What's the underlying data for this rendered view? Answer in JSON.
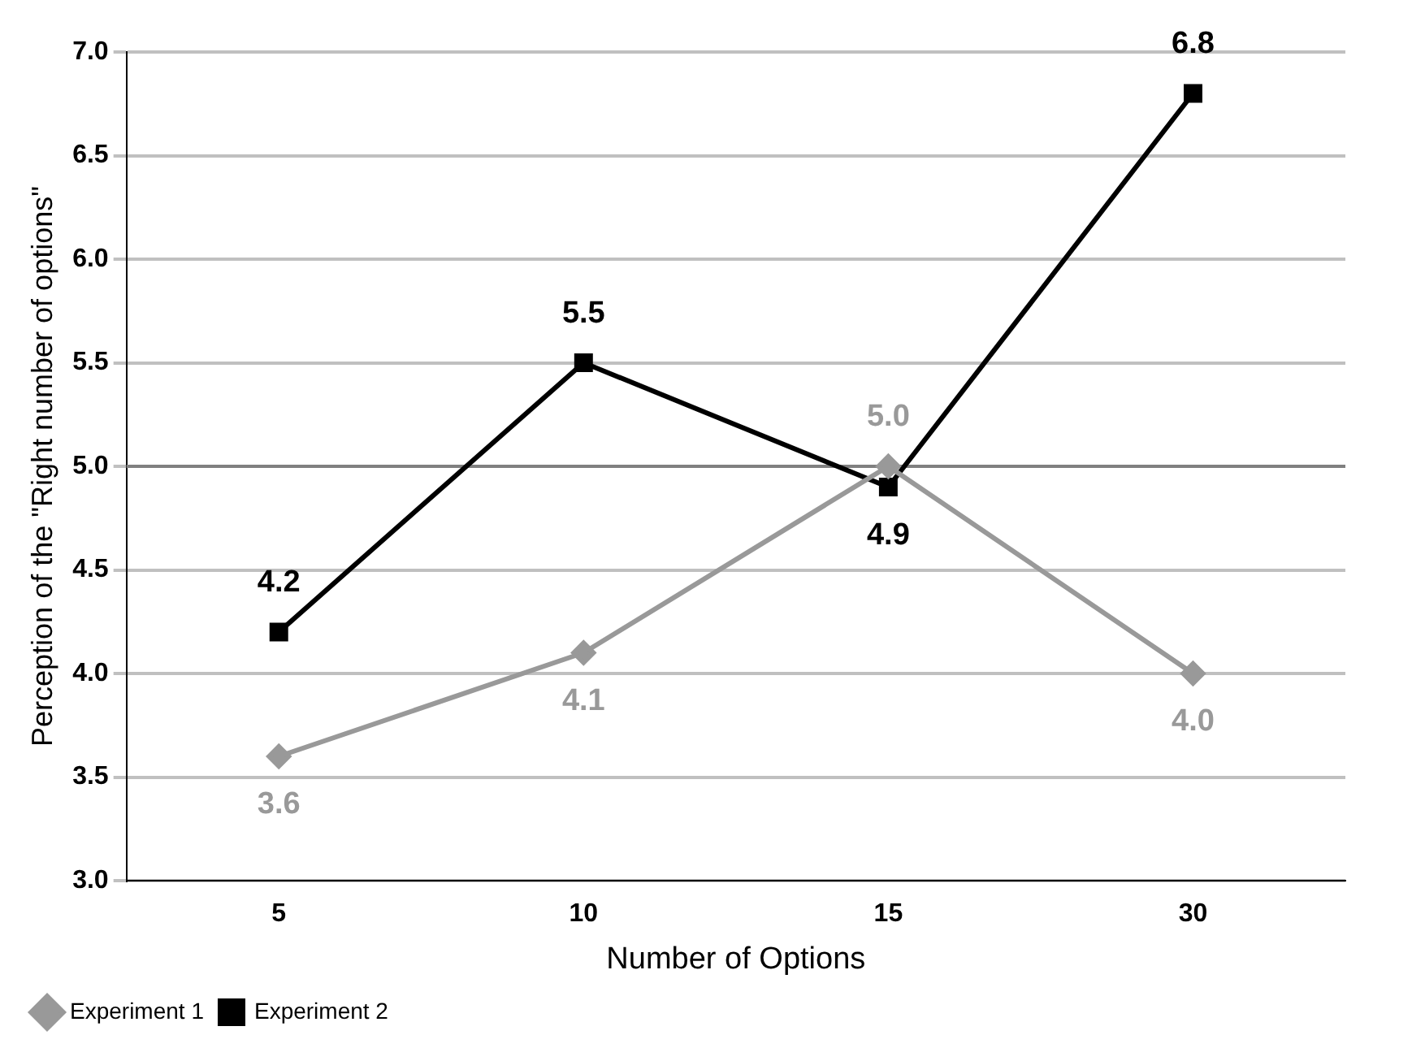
{
  "chart_data": {
    "type": "line",
    "xlabel": "Number of Options",
    "ylabel": "Perception of the \"Right number of options\"",
    "categories": [
      "5",
      "10",
      "15",
      "30"
    ],
    "series": [
      {
        "name": "Experiment 1",
        "color": "#999999",
        "marker": "diamond",
        "values": [
          3.6,
          4.1,
          5.0,
          4.0
        ],
        "value_labels": [
          "3.6",
          "4.1",
          "5.0",
          "4.0"
        ]
      },
      {
        "name": "Experiment 2",
        "color": "#000000",
        "marker": "square",
        "values": [
          4.2,
          5.5,
          4.9,
          6.8
        ],
        "value_labels": [
          "4.2",
          "5.5",
          "4.9",
          "6.8"
        ]
      }
    ],
    "ylim": [
      3.0,
      7.0
    ],
    "yticks": [
      {
        "value": 3,
        "label": "3.0"
      },
      {
        "value": 3.5,
        "label": "3.5"
      },
      {
        "value": 4,
        "label": "4.0"
      },
      {
        "value": 4.5,
        "label": "4.5"
      },
      {
        "value": 5,
        "label": "5.0"
      },
      {
        "value": 5.5,
        "label": "5.5"
      },
      {
        "value": 6,
        "label": "6.0"
      },
      {
        "value": 6.5,
        "label": "6.5"
      },
      {
        "value": 7,
        "label": "7.0"
      }
    ],
    "ref_lines": [
      {
        "axis": "y",
        "value": 5,
        "color": "#808080"
      }
    ],
    "grid": "y",
    "legend": "bottom left",
    "line_style": "solid"
  }
}
